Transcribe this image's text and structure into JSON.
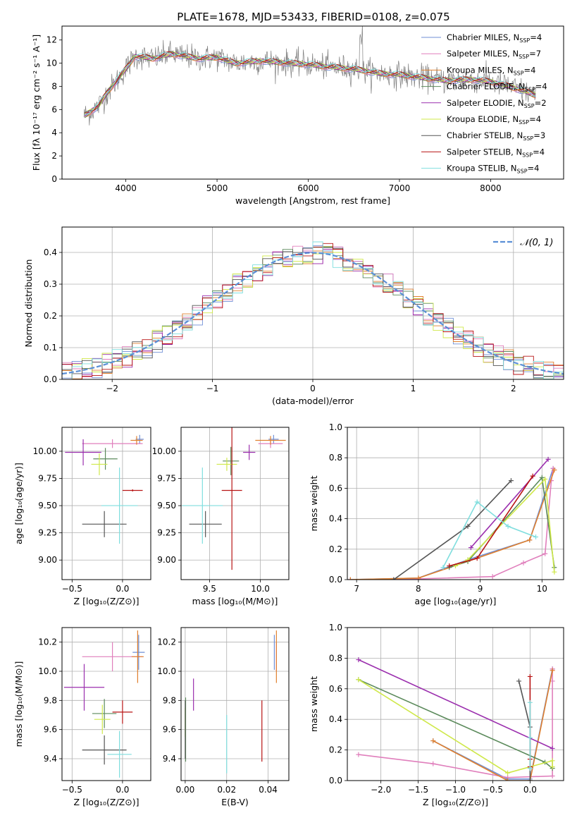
{
  "figure": {
    "title": "PLATE=1678, MJD=53433, FIBERID=0108, z=0.075"
  },
  "colors": {
    "chabrier_miles": "#6f8fd6",
    "salpeter_miles": "#e07fbc",
    "kroupa_miles": "#e0802e",
    "chabrier_elodie": "#5b8a5b",
    "salpeter_elodie": "#9b2fae",
    "kroupa_elodie": "#cfe84a",
    "chabrier_stelib": "#555555",
    "salpeter_stelib": "#b81414",
    "kroupa_stelib": "#7fdede",
    "data": "#808080",
    "normal": "#5b8fd6"
  },
  "models": [
    {
      "name": "Chabrier MILES",
      "nssp": "4"
    },
    {
      "name": "Salpeter MILES",
      "nssp": "7"
    },
    {
      "name": "Kroupa MILES",
      "nssp": "4"
    },
    {
      "name": "Chabrier ELODIE",
      "nssp": "4"
    },
    {
      "name": "Salpeter ELODIE",
      "nssp": "2"
    },
    {
      "name": "Kroupa ELODIE",
      "nssp": "4"
    },
    {
      "name": "Chabrier STELIB",
      "nssp": "3"
    },
    {
      "name": "Salpeter STELIB",
      "nssp": "4"
    },
    {
      "name": "Kroupa STELIB",
      "nssp": "4"
    }
  ],
  "chart_data": [
    {
      "id": "spectrum",
      "type": "line",
      "xlabel": "wavelength [Angstrom, rest frame]",
      "ylabel": "Flux [fλ 10⁻¹⁷ erg cm⁻² s⁻¹ A⁻¹]",
      "xlim": [
        3300,
        8800
      ],
      "ylim": [
        0,
        13.2
      ],
      "xticks": [
        4000,
        5000,
        6000,
        7000,
        8000
      ],
      "yticks": [
        0,
        2,
        4,
        6,
        8,
        10,
        12
      ],
      "grid": false,
      "legend": "top-right",
      "continuum_x": [
        3550,
        3700,
        3800,
        3900,
        4000,
        4100,
        4300,
        4500,
        4800,
        5000,
        5200,
        5500,
        5800,
        6000,
        6200,
        6500,
        6800,
        7000,
        7300,
        7500,
        7800,
        8000,
        8200,
        8400,
        8500
      ],
      "continuum_y": [
        5.5,
        6.3,
        7.5,
        8.5,
        9.5,
        10.6,
        10.4,
        10.8,
        10.4,
        10.5,
        10.0,
        10.2,
        10.0,
        9.9,
        9.7,
        9.5,
        9.1,
        9.0,
        8.7,
        8.5,
        8.6,
        8.4,
        8.0,
        7.5,
        7.2
      ]
    },
    {
      "id": "residuals",
      "type": "histogram",
      "xlabel": "(data-model)/error",
      "ylabel": "Normed distribution",
      "xlim": [
        -2.5,
        2.5
      ],
      "ylim": [
        0,
        0.48
      ],
      "xticks": [
        -2,
        -1,
        0,
        1,
        2
      ],
      "yticks": [
        0.0,
        0.1,
        0.2,
        0.3,
        0.4
      ],
      "grid": true,
      "legend": "top-right",
      "reference": {
        "name": "𝒩(0, 1)",
        "mean": 0,
        "sigma": 1
      }
    },
    {
      "id": "age_vs_Z",
      "type": "errorbar",
      "xlabel": "Z [log₁₀(Z/Z⊙)]",
      "ylabel": "age  [log₁₀(age/yr)]",
      "xlim": [
        -0.6,
        0.28
      ],
      "ylim": [
        8.82,
        10.22
      ],
      "xticks": [
        -0.5,
        0.0
      ],
      "yticks": [
        9.0,
        9.25,
        9.5,
        9.75,
        10.0
      ],
      "grid": true,
      "points": [
        {
          "x": 0.17,
          "y": 10.11,
          "xerr": 0.04,
          "yerr": 0.04
        },
        {
          "x": -0.1,
          "y": 10.07,
          "xerr": 0.3,
          "yerr": 0.04
        },
        {
          "x": 0.14,
          "y": 10.1,
          "xerr": 0.06,
          "yerr": 0.04
        },
        {
          "x": -0.17,
          "y": 9.93,
          "xerr": 0.12,
          "yerr": 0.1
        },
        {
          "x": -0.39,
          "y": 9.99,
          "xerr": 0.18,
          "yerr": 0.12
        },
        {
          "x": -0.23,
          "y": 9.88,
          "xerr": 0.08,
          "yerr": 0.1
        },
        {
          "x": -0.18,
          "y": 9.33,
          "xerr": 0.22,
          "yerr": 0.12
        },
        {
          "x": 0.1,
          "y": 9.64,
          "xerr": 0.1,
          "yerr": 0.01
        },
        {
          "x": -0.03,
          "y": 9.5,
          "xerr": 0.18,
          "yerr": 0.35
        }
      ]
    },
    {
      "id": "age_vs_mass",
      "type": "errorbar",
      "xlabel": "mass [log₁₀(M/M⊙)]",
      "ylabel": "",
      "xlim": [
        9.22,
        10.28
      ],
      "ylim": [
        8.82,
        10.22
      ],
      "xticks": [
        9.5,
        10.0
      ],
      "yticks": [
        9.0,
        9.25,
        9.5,
        9.75,
        10.0
      ],
      "grid": true,
      "points": [
        {
          "x": 10.13,
          "y": 10.11,
          "xerr": 0.05,
          "yerr": 0.04
        },
        {
          "x": 10.1,
          "y": 10.07,
          "xerr": 0.12,
          "yerr": 0.04
        },
        {
          "x": 10.1,
          "y": 10.1,
          "xerr": 0.15,
          "yerr": 0.04
        },
        {
          "x": 9.71,
          "y": 9.91,
          "xerr": 0.08,
          "yerr": 0.13
        },
        {
          "x": 9.89,
          "y": 9.99,
          "xerr": 0.06,
          "yerr": 0.07
        },
        {
          "x": 9.67,
          "y": 9.88,
          "xerr": 0.1,
          "yerr": 0.06
        },
        {
          "x": 9.46,
          "y": 9.33,
          "xerr": 0.16,
          "yerr": 0.12
        },
        {
          "x": 9.72,
          "y": 9.64,
          "xerr": 0.1,
          "yerr": 0.73
        },
        {
          "x": 9.43,
          "y": 9.5,
          "xerr": 0.2,
          "yerr": 0.35
        }
      ]
    },
    {
      "id": "weight_vs_age",
      "type": "line",
      "xlabel": "age  [log₁₀(age/yr)]",
      "ylabel": "mass weight",
      "xlim": [
        6.85,
        10.35
      ],
      "ylim": [
        0.0,
        1.0
      ],
      "xticks": [
        7,
        8,
        9,
        10
      ],
      "yticks": [
        0.0,
        0.2,
        0.4,
        0.6,
        0.8,
        1.0
      ],
      "grid": true,
      "series": [
        {
          "name": "Chabrier MILES",
          "x": [
            6.9,
            8.0,
            8.8,
            9.8,
            10.18
          ],
          "y": [
            0.0,
            0.01,
            0.13,
            0.26,
            0.73
          ]
        },
        {
          "name": "Salpeter MILES",
          "x": [
            6.9,
            8.0,
            9.2,
            9.7,
            10.05,
            10.15,
            10.18
          ],
          "y": [
            0.0,
            0.005,
            0.02,
            0.11,
            0.17,
            0.65,
            0.73
          ]
        },
        {
          "name": "Kroupa MILES",
          "x": [
            6.9,
            8.0,
            8.8,
            9.8,
            10.2
          ],
          "y": [
            0.0,
            0.01,
            0.12,
            0.26,
            0.72
          ]
        },
        {
          "name": "Chabrier ELODIE",
          "x": [
            8.5,
            8.8,
            10.0,
            10.2
          ],
          "y": [
            0.08,
            0.12,
            0.67,
            0.08
          ]
        },
        {
          "name": "Salpeter ELODIE",
          "x": [
            8.85,
            10.1
          ],
          "y": [
            0.21,
            0.79
          ]
        },
        {
          "name": "Kroupa ELODIE",
          "x": [
            8.6,
            8.8,
            10.05,
            10.2
          ],
          "y": [
            0.09,
            0.13,
            0.66,
            0.05
          ]
        },
        {
          "name": "Chabrier STELIB",
          "x": [
            7.6,
            8.8,
            9.5
          ],
          "y": [
            0.0,
            0.35,
            0.65
          ]
        },
        {
          "name": "Salpeter STELIB",
          "x": [
            8.5,
            8.95,
            9.85
          ],
          "y": [
            0.09,
            0.14,
            0.68
          ]
        },
        {
          "name": "Kroupa STELIB",
          "x": [
            8.4,
            8.95,
            9.45,
            9.9
          ],
          "y": [
            0.08,
            0.51,
            0.35,
            0.28
          ]
        }
      ]
    },
    {
      "id": "mass_vs_Z",
      "type": "errorbar",
      "xlabel": "Z [log₁₀(Z/Z⊙)]",
      "ylabel": "mass [log₁₀(M/M⊙)]",
      "xlim": [
        -0.6,
        0.28
      ],
      "ylim": [
        9.25,
        10.3
      ],
      "xticks": [
        -0.5,
        0.0
      ],
      "yticks": [
        9.4,
        9.6,
        9.8,
        10.0,
        10.2
      ],
      "grid": true,
      "points": [
        {
          "x": 0.16,
          "y": 10.13,
          "xerr": 0.06,
          "yerr": 0.12
        },
        {
          "x": -0.1,
          "y": 10.1,
          "xerr": 0.3,
          "yerr": 0.1
        },
        {
          "x": 0.15,
          "y": 10.1,
          "xerr": 0.06,
          "yerr": 0.18
        },
        {
          "x": -0.18,
          "y": 9.71,
          "xerr": 0.12,
          "yerr": 0.1
        },
        {
          "x": -0.38,
          "y": 9.89,
          "xerr": 0.2,
          "yerr": 0.16
        },
        {
          "x": -0.2,
          "y": 9.67,
          "xerr": 0.08,
          "yerr": 0.1
        },
        {
          "x": -0.18,
          "y": 9.46,
          "xerr": 0.22,
          "yerr": 0.1
        },
        {
          "x": 0.0,
          "y": 9.72,
          "xerr": 0.1,
          "yerr": 0.08
        },
        {
          "x": -0.03,
          "y": 9.43,
          "xerr": 0.12,
          "yerr": 0.16
        }
      ]
    },
    {
      "id": "mass_vs_ebv",
      "type": "errorbar",
      "xlabel": "E(B-V)",
      "ylabel": "",
      "xlim": [
        -0.002,
        0.05
      ],
      "ylim": [
        9.25,
        10.3
      ],
      "xticks": [
        0.0,
        0.02,
        0.04
      ],
      "yticks": [
        9.4,
        9.6,
        9.8,
        10.0,
        10.2
      ],
      "grid": true,
      "points": [
        {
          "x": 0.043,
          "y": 10.13,
          "xerr": 0.0,
          "yerr": 0.12
        },
        {
          "x": 0.044,
          "y": 10.1,
          "xerr": 0.0,
          "yerr": 0.1
        },
        {
          "x": 0.044,
          "y": 10.1,
          "xerr": 0.0,
          "yerr": 0.18
        },
        {
          "x": 0.0002,
          "y": 9.6,
          "xerr": 0.0,
          "yerr": 0.22
        },
        {
          "x": 0.004,
          "y": 9.84,
          "xerr": 0.0,
          "yerr": 0.11
        },
        {
          "x": 0.0,
          "y": 9.65,
          "xerr": 0.0,
          "yerr": 0.1
        },
        {
          "x": 0.0,
          "y": 9.6,
          "xerr": 0.0,
          "yerr": 0.2
        },
        {
          "x": 0.037,
          "y": 9.59,
          "xerr": 0.0,
          "yerr": 0.21
        },
        {
          "x": 0.02,
          "y": 9.5,
          "xerr": 0.0,
          "yerr": 0.2
        }
      ]
    },
    {
      "id": "weight_vs_Z",
      "type": "line",
      "xlabel": "Z [log₁₀(Z/Z⊙)]",
      "ylabel": "mass weight",
      "xlim": [
        -2.45,
        0.45
      ],
      "ylim": [
        0.0,
        1.0
      ],
      "xticks": [
        -2.0,
        -1.5,
        -1.0,
        -0.5,
        0.0
      ],
      "yticks": [
        0.0,
        0.2,
        0.4,
        0.6,
        0.8,
        1.0
      ],
      "grid": true,
      "series": [
        {
          "name": "Chabrier MILES",
          "x": [
            -1.3,
            -0.3,
            0.0,
            0.3
          ],
          "y": [
            0.26,
            0.01,
            0.01,
            0.73
          ]
        },
        {
          "name": "Salpeter MILES",
          "x": [
            -2.3,
            -1.3,
            -0.3,
            0.3,
            0.3,
            0.3
          ],
          "y": [
            0.17,
            0.11,
            0.02,
            0.03,
            0.65,
            0.73
          ]
        },
        {
          "name": "Kroupa MILES",
          "x": [
            -1.3,
            -0.3,
            0.0,
            0.3
          ],
          "y": [
            0.26,
            0.0,
            0.0,
            0.72
          ]
        },
        {
          "name": "Chabrier ELODIE",
          "x": [
            -2.3,
            0.2,
            0.3
          ],
          "y": [
            0.66,
            0.12,
            0.08
          ]
        },
        {
          "name": "Salpeter ELODIE",
          "x": [
            -2.3,
            0.3
          ],
          "y": [
            0.79,
            0.21
          ]
        },
        {
          "name": "Kroupa ELODIE",
          "x": [
            -2.3,
            -0.3,
            0.3,
            0.3
          ],
          "y": [
            0.66,
            0.05,
            0.13,
            0.09
          ]
        },
        {
          "name": "Chabrier STELIB",
          "x": [
            -0.15,
            0.0,
            0.0
          ],
          "y": [
            0.65,
            0.35,
            0.0
          ]
        },
        {
          "name": "Salpeter STELIB",
          "x": [
            0.0,
            0.0,
            0.0
          ],
          "y": [
            0.68,
            0.14,
            0.09
          ]
        },
        {
          "name": "Kroupa STELIB",
          "x": [
            0.0,
            0.0,
            0.0
          ],
          "y": [
            0.51,
            0.28,
            0.08
          ]
        }
      ]
    }
  ]
}
